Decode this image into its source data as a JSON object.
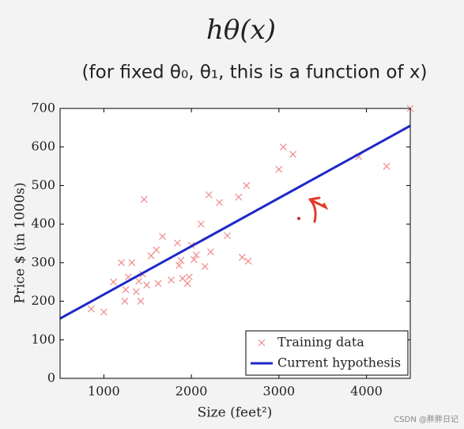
{
  "chart_data": {
    "type": "scatter",
    "title": "hθ(x)",
    "subtitle": "(for fixed θ₀, θ₁, this is a function of x)",
    "x_label": "Size (feet²)",
    "y_label": "Price $ (in 1000s)",
    "xlim": [
      500,
      4500
    ],
    "ylim": [
      0,
      700
    ],
    "xticks": [
      1000,
      2000,
      3000,
      4000
    ],
    "yticks": [
      0,
      100,
      200,
      300,
      400,
      500,
      600,
      700
    ],
    "legend": "lower right",
    "watermark": "CSDN @胖胖日记",
    "series": [
      {
        "name": "Training data",
        "type": "scatter",
        "color": "#f08a8a",
        "x": [
          855,
          1000,
          1110,
          1200,
          1240,
          1250,
          1280,
          1320,
          1370,
          1400,
          1420,
          1445,
          1460,
          1490,
          1540,
          1600,
          1620,
          1670,
          1770,
          1840,
          1860,
          1880,
          1900,
          1955,
          1975,
          2000,
          2030,
          2055,
          2110,
          2155,
          2200,
          2220,
          2320,
          2410,
          2540,
          2580,
          2630,
          2650,
          3000,
          3050,
          3160,
          3910,
          4230,
          4500
        ],
        "values": [
          180,
          172,
          250,
          300,
          200,
          230,
          263,
          300,
          225,
          252,
          200,
          270,
          464,
          242,
          318,
          333,
          246,
          368,
          255,
          351,
          293,
          306,
          259,
          246,
          263,
          345,
          308,
          320,
          400,
          290,
          476,
          328,
          456,
          370,
          470,
          314,
          500,
          304,
          542,
          600,
          581,
          575,
          550,
          700
        ]
      },
      {
        "name": "Current hypothesis",
        "type": "line",
        "color": "#1c28c8",
        "x": [
          500,
          4500
        ],
        "values": [
          155,
          655
        ]
      }
    ]
  }
}
